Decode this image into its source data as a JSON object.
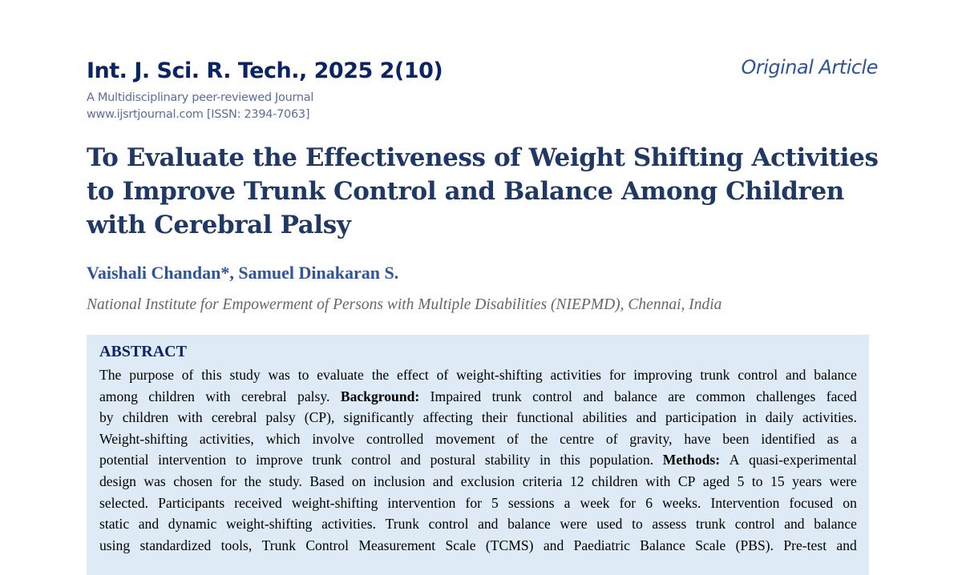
{
  "header": {
    "journal": "Int. J. Sci. R. Tech., 2025 2(10)",
    "subtitle": "A Multidisciplinary peer-reviewed Journal",
    "website": "www.ijsrtjournal.com [ISSN: 2394-7063]",
    "article_type": "Original Article"
  },
  "title_lines": [
    "To Evaluate the Effectiveness of Weight Shifting Activities",
    "to Improve Trunk Control and Balance Among Children",
    "with Cerebral Palsy"
  ],
  "authors": "Vaishali Chandan*, Samuel Dinakaran S.",
  "affiliation": "National Institute for Empowerment of Persons with Multiple Disabilities (NIEPMD), Chennai, India",
  "abstract": {
    "heading": "ABSTRACT",
    "lines": [
      [
        "The purpose of this study was to evaluate the effect of weight-shifting activities for improving trunk control and balance"
      ],
      [
        "among children with cerebral palsy. ",
        "Background",
        ": Impaired trunk control and balance are common challenges faced"
      ],
      [
        "by children with cerebral palsy (CP), significantly affecting their functional abilities and participation in daily activities."
      ],
      [
        "Weight-shifting activities, which involve controlled movement of the centre of gravity, have been identified as a"
      ],
      [
        "potential intervention to improve trunk control and postural stability in this population. ",
        "Methods",
        ": A quasi-experimental"
      ],
      [
        "design was chosen for the study. Based on inclusion and exclusion criteria 12 children with CP aged 5 to 15 years were"
      ],
      [
        "selected. Participants received weight-shifting intervention for 5 sessions a week for 6 weeks. Intervention focused on"
      ],
      [
        "static and dynamic weight-shifting activities. Trunk control and balance were used to assess trunk control and balance"
      ],
      [
        "using standardized tools, Trunk Control Measurement Scale (TCMS) and Paediatric Balance Scale (PBS). Pre-test and"
      ]
    ]
  }
}
